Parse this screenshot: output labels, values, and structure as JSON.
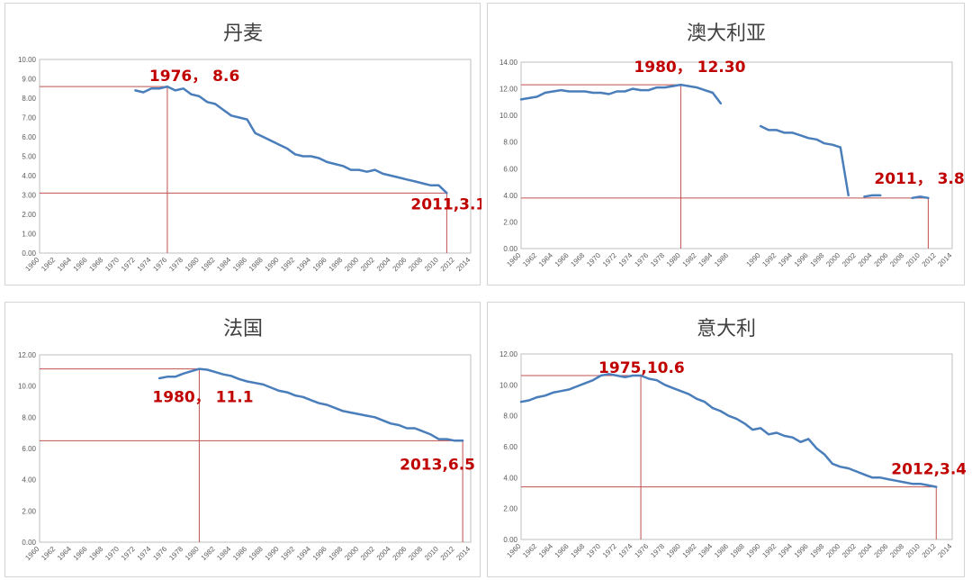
{
  "chart_data": [
    {
      "type": "line",
      "title": "丹麦",
      "ylim": [
        0,
        10
      ],
      "yticks": [
        "0.00",
        "1.00",
        "2.00",
        "3.00",
        "4.00",
        "5.00",
        "6.00",
        "7.00",
        "8.00",
        "9.00",
        "10.00"
      ],
      "xlim": [
        1960,
        2014
      ],
      "xticks": [
        "1960",
        "1962",
        "1964",
        "1966",
        "1968",
        "1970",
        "1972",
        "1974",
        "1976",
        "1978",
        "1980",
        "1982",
        "1984",
        "1986",
        "1988",
        "1990",
        "1992",
        "1994",
        "1996",
        "1998",
        "2000",
        "2002",
        "2004",
        "2006",
        "2008",
        "2010",
        "2012",
        "2014"
      ],
      "grid": false,
      "color": "#4a7ebb",
      "series": [
        {
          "segments": [
            [
              [
                1972,
                8.4
              ],
              [
                1973,
                8.3
              ],
              [
                1974,
                8.5
              ],
              [
                1975,
                8.5
              ],
              [
                1976,
                8.6
              ],
              [
                1977,
                8.4
              ],
              [
                1978,
                8.5
              ],
              [
                1979,
                8.2
              ],
              [
                1980,
                8.1
              ],
              [
                1981,
                7.8
              ],
              [
                1982,
                7.7
              ],
              [
                1983,
                7.4
              ],
              [
                1984,
                7.1
              ],
              [
                1985,
                7.0
              ],
              [
                1986,
                6.9
              ],
              [
                1987,
                6.2
              ],
              [
                1988,
                6.0
              ],
              [
                1989,
                5.8
              ],
              [
                1990,
                5.6
              ],
              [
                1991,
                5.4
              ],
              [
                1992,
                5.1
              ],
              [
                1993,
                5.0
              ],
              [
                1994,
                5.0
              ],
              [
                1995,
                4.9
              ],
              [
                1996,
                4.7
              ],
              [
                1997,
                4.6
              ],
              [
                1998,
                4.5
              ],
              [
                1999,
                4.3
              ],
              [
                2000,
                4.3
              ],
              [
                2001,
                4.2
              ],
              [
                2002,
                4.3
              ],
              [
                2003,
                4.1
              ],
              [
                2004,
                4.0
              ],
              [
                2005,
                3.9
              ],
              [
                2006,
                3.8
              ],
              [
                2007,
                3.7
              ],
              [
                2008,
                3.6
              ],
              [
                2009,
                3.5
              ],
              [
                2010,
                3.5
              ],
              [
                2011,
                3.1
              ]
            ]
          ]
        }
      ],
      "annotations": [
        {
          "text": "1976， 8.6",
          "x": 1976,
          "y": 8.6
        },
        {
          "text": "2011,3.1",
          "x": 2011,
          "y": 3.1
        }
      ]
    },
    {
      "type": "line",
      "title": "澳大利亚",
      "ylim": [
        0,
        14
      ],
      "yticks": [
        "0.00",
        "2.00",
        "4.00",
        "6.00",
        "8.00",
        "10.00",
        "12.00",
        "14.00"
      ],
      "xlim": [
        1960,
        2014
      ],
      "xticks": [
        "1960",
        "1962",
        "1964",
        "1966",
        "1968",
        "1970",
        "1972",
        "1974",
        "1976",
        "1978",
        "1980",
        "1982",
        "1984",
        "1986",
        "1990",
        "1992",
        "1994",
        "1996",
        "1998",
        "2000",
        "2002",
        "2004",
        "2006",
        "2008",
        "2010",
        "2012",
        "2014"
      ],
      "grid": false,
      "color": "#4a7ebb",
      "series": [
        {
          "segments": [
            [
              [
                1960,
                11.2
              ],
              [
                1961,
                11.3
              ],
              [
                1962,
                11.4
              ],
              [
                1963,
                11.7
              ],
              [
                1964,
                11.8
              ],
              [
                1965,
                11.9
              ],
              [
                1966,
                11.8
              ],
              [
                1967,
                11.8
              ],
              [
                1968,
                11.8
              ],
              [
                1969,
                11.7
              ],
              [
                1970,
                11.7
              ],
              [
                1971,
                11.6
              ],
              [
                1972,
                11.8
              ],
              [
                1973,
                11.8
              ],
              [
                1974,
                12.0
              ],
              [
                1975,
                11.9
              ],
              [
                1976,
                11.9
              ],
              [
                1977,
                12.1
              ],
              [
                1978,
                12.1
              ],
              [
                1979,
                12.2
              ],
              [
                1980,
                12.3
              ],
              [
                1981,
                12.2
              ],
              [
                1982,
                12.1
              ],
              [
                1983,
                11.9
              ],
              [
                1984,
                11.7
              ],
              [
                1985,
                10.9
              ]
            ],
            [
              [
                1990,
                9.2
              ],
              [
                1991,
                8.9
              ],
              [
                1992,
                8.9
              ],
              [
                1993,
                8.7
              ],
              [
                1994,
                8.7
              ],
              [
                1995,
                8.5
              ],
              [
                1996,
                8.3
              ],
              [
                1997,
                8.2
              ],
              [
                1998,
                7.9
              ],
              [
                1999,
                7.8
              ],
              [
                2000,
                7.6
              ],
              [
                2001,
                4.0
              ]
            ],
            [
              [
                2003,
                3.9
              ],
              [
                2004,
                4.0
              ],
              [
                2005,
                4.0
              ]
            ],
            [
              [
                2009,
                3.8
              ],
              [
                2010,
                3.9
              ],
              [
                2011,
                3.8
              ]
            ]
          ]
        }
      ],
      "annotations": [
        {
          "text": "1980， 12.30",
          "x": 1980,
          "y": 12.3
        },
        {
          "text": "2011， 3.8",
          "x": 2011,
          "y": 3.8
        }
      ]
    },
    {
      "type": "line",
      "title": "法国",
      "ylim": [
        0,
        12
      ],
      "yticks": [
        "0.00",
        "2.00",
        "4.00",
        "6.00",
        "8.00",
        "10.00",
        "12.00"
      ],
      "xlim": [
        1960,
        2014
      ],
      "xticks": [
        "1960",
        "1962",
        "1964",
        "1966",
        "1968",
        "1970",
        "1972",
        "1974",
        "1976",
        "1978",
        "1980",
        "1982",
        "1984",
        "1986",
        "1988",
        "1990",
        "1992",
        "1994",
        "1996",
        "1998",
        "2000",
        "2002",
        "2004",
        "2006",
        "2008",
        "2010",
        "2012",
        "2014"
      ],
      "grid": false,
      "color": "#4a7ebb",
      "series": [
        {
          "segments": [
            [
              [
                1975,
                10.5
              ],
              [
                1976,
                10.6
              ],
              [
                1977,
                10.6
              ],
              [
                1978,
                10.8
              ],
              [
                1979,
                10.95
              ],
              [
                1980,
                11.1
              ],
              [
                1981,
                11.05
              ],
              [
                1982,
                10.9
              ],
              [
                1983,
                10.75
              ],
              [
                1984,
                10.65
              ],
              [
                1985,
                10.45
              ],
              [
                1986,
                10.3
              ],
              [
                1987,
                10.2
              ],
              [
                1988,
                10.1
              ],
              [
                1989,
                9.9
              ],
              [
                1990,
                9.7
              ],
              [
                1991,
                9.6
              ],
              [
                1992,
                9.4
              ],
              [
                1993,
                9.3
              ],
              [
                1994,
                9.1
              ],
              [
                1995,
                8.9
              ],
              [
                1996,
                8.8
              ],
              [
                1997,
                8.6
              ],
              [
                1998,
                8.4
              ],
              [
                1999,
                8.3
              ],
              [
                2000,
                8.2
              ],
              [
                2001,
                8.1
              ],
              [
                2002,
                8.0
              ],
              [
                2003,
                7.8
              ],
              [
                2004,
                7.6
              ],
              [
                2005,
                7.5
              ],
              [
                2006,
                7.3
              ],
              [
                2007,
                7.3
              ],
              [
                2008,
                7.1
              ],
              [
                2009,
                6.9
              ],
              [
                2010,
                6.6
              ],
              [
                2011,
                6.6
              ],
              [
                2012,
                6.5
              ],
              [
                2013,
                6.5
              ]
            ]
          ]
        }
      ],
      "annotations": [
        {
          "text": "1980， 11.1",
          "x": 1980,
          "y": 11.1
        },
        {
          "text": "2013,6.5",
          "x": 2013,
          "y": 6.5
        }
      ]
    },
    {
      "type": "line",
      "title": "意大利",
      "ylim": [
        0,
        12
      ],
      "yticks": [
        "0.00",
        "2.00",
        "4.00",
        "6.00",
        "8.00",
        "10.00",
        "12.00"
      ],
      "xlim": [
        1960,
        2014
      ],
      "xticks": [
        "1960",
        "1962",
        "1964",
        "1966",
        "1968",
        "1970",
        "1972",
        "1974",
        "1976",
        "1978",
        "1980",
        "1982",
        "1984",
        "1986",
        "1988",
        "1990",
        "1992",
        "1994",
        "1996",
        "1998",
        "2000",
        "2002",
        "2004",
        "2006",
        "2008",
        "2010",
        "2012",
        "2014"
      ],
      "grid": false,
      "color": "#4a7ebb",
      "series": [
        {
          "segments": [
            [
              [
                1960,
                8.9
              ],
              [
                1961,
                9.0
              ],
              [
                1962,
                9.2
              ],
              [
                1963,
                9.3
              ],
              [
                1964,
                9.5
              ],
              [
                1965,
                9.6
              ],
              [
                1966,
                9.7
              ],
              [
                1967,
                9.9
              ],
              [
                1968,
                10.1
              ],
              [
                1969,
                10.3
              ],
              [
                1970,
                10.6
              ],
              [
                1971,
                10.7
              ],
              [
                1972,
                10.6
              ],
              [
                1973,
                10.5
              ],
              [
                1974,
                10.6
              ],
              [
                1975,
                10.6
              ],
              [
                1976,
                10.4
              ],
              [
                1977,
                10.3
              ],
              [
                1978,
                10.0
              ],
              [
                1979,
                9.8
              ],
              [
                1980,
                9.6
              ],
              [
                1981,
                9.4
              ],
              [
                1982,
                9.1
              ],
              [
                1983,
                8.9
              ],
              [
                1984,
                8.5
              ],
              [
                1985,
                8.3
              ],
              [
                1986,
                8.0
              ],
              [
                1987,
                7.8
              ],
              [
                1988,
                7.5
              ],
              [
                1989,
                7.1
              ],
              [
                1990,
                7.2
              ],
              [
                1991,
                6.8
              ],
              [
                1992,
                6.9
              ],
              [
                1993,
                6.7
              ],
              [
                1994,
                6.6
              ],
              [
                1995,
                6.3
              ],
              [
                1996,
                6.5
              ],
              [
                1997,
                5.9
              ],
              [
                1998,
                5.5
              ],
              [
                1999,
                4.9
              ],
              [
                2000,
                4.7
              ],
              [
                2001,
                4.6
              ],
              [
                2002,
                4.4
              ],
              [
                2003,
                4.2
              ],
              [
                2004,
                4.0
              ],
              [
                2005,
                4.0
              ],
              [
                2006,
                3.9
              ],
              [
                2007,
                3.8
              ],
              [
                2008,
                3.7
              ],
              [
                2009,
                3.6
              ],
              [
                2010,
                3.6
              ],
              [
                2011,
                3.5
              ],
              [
                2012,
                3.4
              ]
            ]
          ]
        }
      ],
      "annotations": [
        {
          "text": "1975,10.6",
          "x": 1975,
          "y": 10.6
        },
        {
          "text": "2012,3.4",
          "x": 2012,
          "y": 3.4
        }
      ]
    }
  ],
  "colors": {
    "line": "#4a7ebb",
    "refline": "#c0504d",
    "annotation": "#c00000",
    "axis": "#bfbfbf"
  }
}
